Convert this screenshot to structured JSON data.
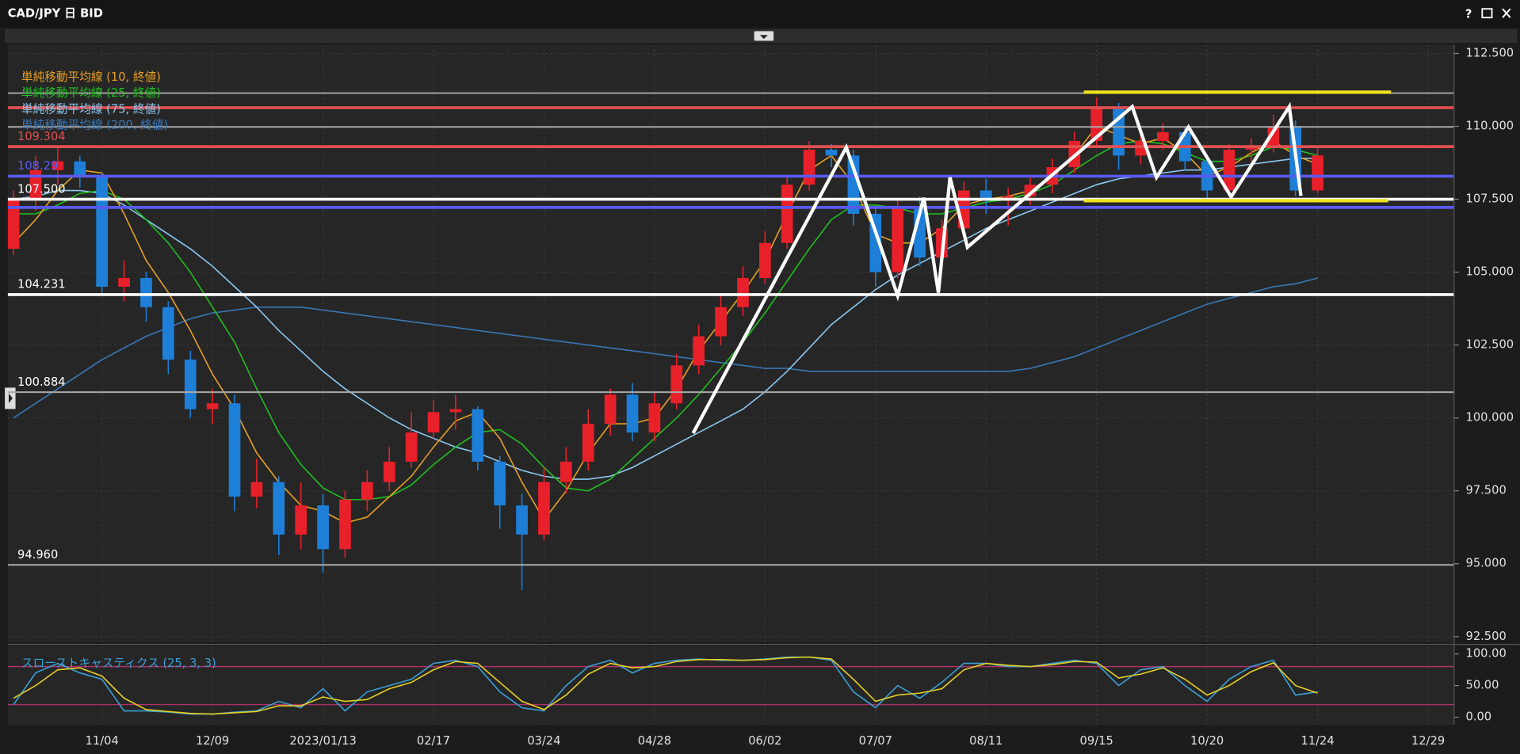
{
  "window": {
    "title": "CAD/JPY 日 BID",
    "help": "?"
  },
  "chart_data": [
    {
      "type": "candlestick",
      "categories": [
        null,
        null,
        null,
        null,
        "11/04",
        null,
        null,
        null,
        null,
        "12/09",
        null,
        null,
        null,
        null,
        "2023/01/13",
        null,
        null,
        null,
        null,
        "02/17",
        null,
        null,
        null,
        null,
        "03/24",
        null,
        null,
        null,
        null,
        "04/28",
        null,
        null,
        null,
        null,
        "06/02",
        null,
        null,
        null,
        null,
        "07/07",
        null,
        null,
        null,
        null,
        "08/11",
        null,
        null,
        null,
        null,
        "09/15",
        null,
        null,
        null,
        null,
        "10/20",
        null,
        null,
        null,
        null,
        "11/24",
        null,
        null,
        null,
        null,
        "12/29"
      ],
      "open": [
        105.8,
        107.5,
        108.5,
        108.8,
        108.3,
        104.5,
        104.8,
        103.8,
        102.0,
        100.3,
        100.5,
        97.3,
        97.8,
        96.0,
        97.0,
        95.5,
        97.2,
        97.8,
        98.5,
        99.5,
        100.2,
        100.3,
        98.5,
        97.0,
        96.0,
        97.8,
        98.5,
        99.8,
        100.8,
        99.5,
        100.5,
        101.8,
        102.8,
        103.8,
        104.8,
        106.0,
        108.0,
        109.2,
        109.0,
        107.0,
        105.0,
        107.2,
        105.5,
        106.5,
        107.8,
        107.5,
        107.6,
        108.0,
        108.6,
        109.5,
        110.6,
        109.0,
        109.5,
        109.8,
        108.8,
        107.8,
        109.2,
        109.3,
        110.0,
        107.8,
        null,
        null,
        null,
        null,
        null
      ],
      "high": [
        107.8,
        109.0,
        109.3,
        109.0,
        108.4,
        105.4,
        105.0,
        104.0,
        102.3,
        101.0,
        100.8,
        98.6,
        98.0,
        97.8,
        97.4,
        97.5,
        98.2,
        99.0,
        100.2,
        100.6,
        100.8,
        100.4,
        98.7,
        97.4,
        98.3,
        99.0,
        100.3,
        101.0,
        101.2,
        100.9,
        102.2,
        103.2,
        104.2,
        105.2,
        106.4,
        108.3,
        109.5,
        109.4,
        109.2,
        107.3,
        107.5,
        107.6,
        106.8,
        108.1,
        108.2,
        107.9,
        108.3,
        108.9,
        109.8,
        111.0,
        110.8,
        109.8,
        110.1,
        110.0,
        109.0,
        109.4,
        109.6,
        110.4,
        110.2,
        109.3,
        null,
        null,
        null,
        null,
        null
      ],
      "low": [
        105.6,
        107.1,
        108.0,
        107.9,
        104.2,
        104.0,
        103.3,
        101.5,
        100.0,
        99.8,
        96.8,
        96.9,
        95.3,
        95.5,
        94.7,
        95.2,
        96.8,
        97.5,
        98.3,
        99.3,
        99.6,
        98.2,
        96.2,
        94.1,
        95.8,
        97.4,
        98.2,
        99.4,
        99.2,
        99.2,
        100.3,
        101.5,
        102.5,
        103.5,
        104.6,
        105.8,
        107.8,
        108.6,
        106.6,
        104.5,
        104.8,
        105.2,
        105.3,
        106.2,
        107.0,
        106.6,
        107.3,
        107.7,
        108.4,
        109.3,
        108.5,
        108.7,
        109.2,
        108.5,
        107.5,
        107.6,
        108.8,
        109.1,
        107.6,
        107.7,
        null,
        null,
        null,
        null,
        null
      ],
      "close": [
        107.5,
        108.5,
        108.8,
        108.3,
        104.5,
        104.8,
        103.8,
        102.0,
        100.3,
        100.5,
        97.3,
        97.8,
        96.0,
        97.0,
        95.5,
        97.2,
        97.8,
        98.5,
        99.5,
        100.2,
        100.3,
        98.5,
        97.0,
        96.0,
        97.8,
        98.5,
        99.8,
        100.8,
        99.5,
        100.5,
        101.8,
        102.8,
        103.8,
        104.8,
        106.0,
        108.0,
        109.2,
        109.0,
        107.0,
        105.0,
        107.2,
        105.5,
        106.5,
        107.8,
        107.5,
        107.6,
        108.0,
        108.6,
        109.5,
        110.6,
        109.0,
        109.5,
        109.8,
        108.8,
        107.8,
        109.2,
        109.3,
        110.0,
        107.8,
        109.0,
        null,
        null,
        null,
        null,
        null
      ],
      "up_color": "#e8202a",
      "down_color": "#1e7fd8",
      "series": [
        {
          "name": "単純移動平均線 (10, 終値)",
          "color": "#e8a020",
          "values": [
            106.0,
            106.8,
            107.8,
            108.5,
            108.4,
            107.0,
            105.4,
            104.3,
            103.0,
            101.5,
            100.3,
            98.8,
            97.8,
            97.0,
            96.8,
            96.4,
            96.6,
            97.3,
            98.0,
            99.0,
            99.9,
            100.2,
            99.3,
            97.8,
            96.5,
            97.5,
            98.8,
            99.8,
            99.8,
            100.0,
            101.0,
            102.3,
            103.3,
            104.3,
            105.4,
            107.0,
            108.5,
            109.0,
            108.0,
            106.3,
            106.0,
            106.0,
            106.5,
            107.3,
            107.5,
            107.6,
            107.8,
            108.3,
            109.0,
            110.0,
            109.7,
            109.4,
            109.6,
            109.1,
            108.3,
            108.6,
            109.1,
            109.5,
            109.0,
            108.7,
            null,
            null,
            null,
            null,
            null
          ]
        },
        {
          "name": "単純移動平均線 (25, 終値)",
          "color": "#20c020",
          "values": [
            107.0,
            107.0,
            107.3,
            107.7,
            107.8,
            107.5,
            106.8,
            106.0,
            105.0,
            103.8,
            102.6,
            101.0,
            99.5,
            98.4,
            97.6,
            97.2,
            97.2,
            97.3,
            97.7,
            98.4,
            99.0,
            99.5,
            99.6,
            99.1,
            98.3,
            97.6,
            97.5,
            97.9,
            98.6,
            99.3,
            100.0,
            100.8,
            101.7,
            102.6,
            103.6,
            104.7,
            105.8,
            106.8,
            107.3,
            107.3,
            107.2,
            107.0,
            107.0,
            107.2,
            107.4,
            107.5,
            107.7,
            108.0,
            108.5,
            109.0,
            109.4,
            109.5,
            109.4,
            109.1,
            108.8,
            108.8,
            109.0,
            109.3,
            109.2,
            109.0,
            null,
            null,
            null,
            null,
            null
          ]
        },
        {
          "name": "単純移動平均線 (75, 終値)",
          "color": "#8cc8f0",
          "values": [
            107.5,
            107.6,
            107.8,
            107.8,
            107.7,
            107.3,
            106.8,
            106.3,
            105.8,
            105.2,
            104.5,
            103.8,
            103.0,
            102.3,
            101.6,
            101.0,
            100.5,
            100.0,
            99.6,
            99.3,
            99.0,
            98.8,
            98.5,
            98.2,
            98.0,
            97.9,
            97.9,
            98.0,
            98.3,
            98.7,
            99.1,
            99.5,
            99.9,
            100.3,
            100.9,
            101.6,
            102.4,
            103.2,
            103.8,
            104.4,
            104.9,
            105.3,
            105.7,
            106.1,
            106.5,
            106.8,
            107.1,
            107.4,
            107.7,
            108.0,
            108.2,
            108.3,
            108.4,
            108.5,
            108.5,
            108.6,
            108.7,
            108.8,
            108.9,
            108.9,
            null,
            null,
            null,
            null,
            null
          ]
        },
        {
          "name": "単純移動平均線 (200, 終値)",
          "color": "#3a78b8",
          "values": [
            100.0,
            100.5,
            101.0,
            101.5,
            102.0,
            102.4,
            102.8,
            103.1,
            103.4,
            103.6,
            103.7,
            103.8,
            103.8,
            103.8,
            103.7,
            103.6,
            103.5,
            103.4,
            103.3,
            103.2,
            103.1,
            103.0,
            102.9,
            102.8,
            102.7,
            102.6,
            102.5,
            102.4,
            102.3,
            102.2,
            102.1,
            102.0,
            101.9,
            101.8,
            101.7,
            101.7,
            101.6,
            101.6,
            101.6,
            101.6,
            101.6,
            101.6,
            101.6,
            101.6,
            101.6,
            101.6,
            101.7,
            101.9,
            102.1,
            102.4,
            102.7,
            103.0,
            103.3,
            103.6,
            103.9,
            104.1,
            104.3,
            104.5,
            104.6,
            104.8,
            null,
            null,
            null,
            null,
            null
          ]
        }
      ],
      "hlines": [
        {
          "value": 111.14,
          "color": "#a8a8a8"
        },
        {
          "value": 110.64,
          "color": "#e05050"
        },
        {
          "value": 109.98,
          "color": "#a8a8a8"
        },
        {
          "value": 109.304,
          "label": "109.304",
          "color": "#e05050"
        },
        {
          "value": 108.29,
          "label": "108.29",
          "color": "#5a5af0"
        },
        {
          "value": 107.5,
          "label": "107.500",
          "color": "#ffffff"
        },
        {
          "value": 107.22,
          "color": "#5a5af0"
        },
        {
          "value": 104.231,
          "label": "104.231",
          "color": "#ffffff"
        },
        {
          "value": 100.884,
          "label": "100.884",
          "color": "#a8a8a8"
        },
        {
          "value": 94.96,
          "label": "94.960",
          "color": "#a8a8a8"
        }
      ],
      "ylim": [
        92.3,
        112.8
      ],
      "yticks": [
        {
          "value": 112.5,
          "label": "112.500"
        },
        {
          "value": 110,
          "label": "110.000"
        },
        {
          "value": 107.5,
          "label": "107.500"
        },
        {
          "value": 105,
          "label": "105.000"
        },
        {
          "value": 102.5,
          "label": "102.500"
        },
        {
          "value": 100,
          "label": "100.000"
        },
        {
          "value": 97.5,
          "label": "97.500"
        },
        {
          "value": 95,
          "label": "95.000"
        },
        {
          "value": 92.5,
          "label": "92.500"
        }
      ],
      "grid": true
    },
    {
      "type": "line",
      "title": "スローストキャスティクス (25, 3, 3)",
      "series": [
        {
          "name": "%K",
          "color": "#3aa0d8",
          "values": [
            20,
            70,
            85,
            70,
            60,
            10,
            10,
            8,
            5,
            5,
            8,
            10,
            25,
            15,
            45,
            10,
            40,
            50,
            60,
            85,
            90,
            80,
            40,
            15,
            10,
            50,
            80,
            90,
            70,
            85,
            90,
            92,
            90,
            90,
            92,
            95,
            95,
            90,
            40,
            15,
            50,
            30,
            55,
            85,
            85,
            80,
            80,
            85,
            90,
            85,
            50,
            75,
            80,
            50,
            25,
            60,
            80,
            90,
            35,
            40
          ]
        },
        {
          "name": "%D",
          "color": "#e8d020",
          "values": [
            30,
            50,
            75,
            78,
            65,
            30,
            12,
            9,
            6,
            5,
            7,
            9,
            18,
            18,
            32,
            25,
            28,
            45,
            55,
            75,
            88,
            85,
            55,
            25,
            12,
            35,
            68,
            85,
            78,
            80,
            88,
            91,
            91,
            90,
            91,
            94,
            95,
            92,
            60,
            25,
            35,
            38,
            45,
            75,
            85,
            82,
            80,
            83,
            88,
            87,
            62,
            68,
            78,
            60,
            35,
            50,
            72,
            86,
            50,
            38
          ]
        }
      ],
      "levels": [
        80,
        20
      ],
      "level_color": "#b0306a",
      "ylim": [
        -12,
        112
      ],
      "yticks": [
        {
          "value": 100,
          "label": "100.00"
        },
        {
          "value": 50,
          "label": "50.00"
        },
        {
          "value": 0,
          "label": "0.00"
        }
      ]
    }
  ]
}
